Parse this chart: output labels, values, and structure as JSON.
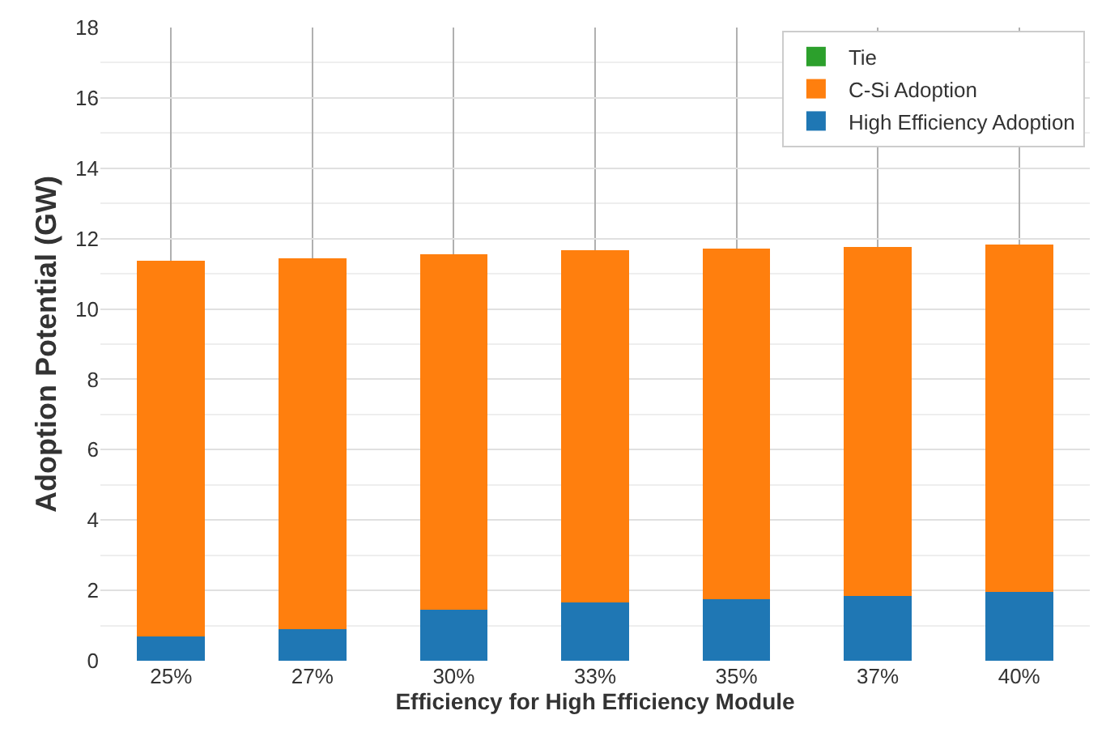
{
  "chart_data": {
    "type": "bar",
    "stacked": true,
    "xlabel": "Efficiency for High Efficiency Module",
    "ylabel": "Adoption Potential (GW)",
    "categories": [
      "25%",
      "27%",
      "30%",
      "33%",
      "35%",
      "37%",
      "40%"
    ],
    "series": [
      {
        "name": "High Efficiency Adoption",
        "color": "#1f77b4",
        "values": [
          0.68,
          0.9,
          1.45,
          1.65,
          1.75,
          1.85,
          1.95
        ]
      },
      {
        "name": "C-Si Adoption",
        "color": "#ff7f0e",
        "values": [
          10.68,
          10.55,
          10.1,
          10.02,
          9.97,
          9.91,
          9.87
        ]
      },
      {
        "name": "Tie",
        "color": "#2ca02c",
        "values": [
          0,
          0,
          0,
          0,
          0,
          0,
          0
        ]
      }
    ],
    "ylim": [
      0,
      18
    ],
    "yticks": [
      0,
      2,
      4,
      6,
      8,
      10,
      12,
      14,
      16,
      18
    ],
    "grid": true,
    "legend": "top right"
  }
}
